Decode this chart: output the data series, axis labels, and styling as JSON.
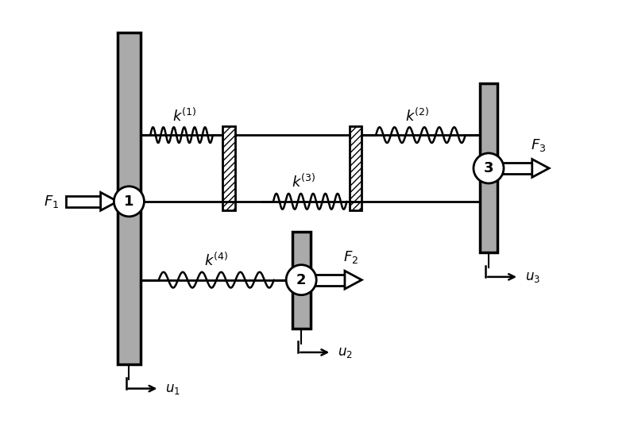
{
  "bg_color": "#ffffff",
  "gray_color": "#aaaaaa",
  "black_color": "#000000",
  "white_color": "#ffffff",
  "lw_block": 2.5,
  "lw_line": 2.0,
  "lw_spring": 1.8,
  "figsize": [
    8.04,
    5.38
  ],
  "dpi": 100,
  "xlim": [
    0,
    10
  ],
  "ylim": [
    0,
    7
  ]
}
